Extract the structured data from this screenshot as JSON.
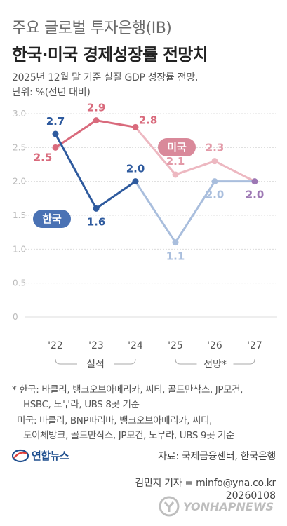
{
  "header": {
    "suptitle": "주요 글로벌 투자은행(IB)",
    "title": "한국·미국 경제성장률 전망치",
    "subtitle_line1": "2025년 12월 말 기준 실질 GDP 성장률 전망,",
    "subtitle_line2": "단위: %(전년 대비)"
  },
  "colors": {
    "korea_actual": "#2e5a9e",
    "korea_forecast": "#a9bedd",
    "us_actual": "#d96a7c",
    "us_forecast": "#edb8c1",
    "grid": "#dcdcdc",
    "axis_text": "#bbbbbb",
    "converge_marker": "#9d78b4"
  },
  "chart_data": {
    "type": "line",
    "x": [
      "'22",
      "'23",
      "'24",
      "'25",
      "'26",
      "'27"
    ],
    "ylim": [
      0,
      3.0
    ],
    "yticks": [
      "0",
      "0.5",
      "1.0",
      "1.5",
      "2.0",
      "2.5",
      "3.0"
    ],
    "grid": true,
    "series": [
      {
        "name": "한국",
        "values": [
          2.7,
          1.6,
          2.0,
          1.1,
          2.0,
          2.0
        ],
        "labels": [
          "2.7",
          "1.6",
          "2.0",
          "1.1",
          "2.0",
          "2.0"
        ]
      },
      {
        "name": "미국",
        "values": [
          2.5,
          2.9,
          2.8,
          2.1,
          2.3,
          2.0
        ],
        "labels": [
          "2.5",
          "2.9",
          "2.8",
          "2.1",
          "2.3",
          ""
        ]
      }
    ],
    "period_labels": [
      "실적",
      "전망*"
    ]
  },
  "notes": {
    "korea_line1": "* 한국: 바클리, 뱅크오브아메리카, 씨티, 골드만삭스, JP모건,",
    "korea_line2": "HSBC, 노무라, UBS 8곳 기준",
    "us_line1": "미국: 바클리, BNP파리바, 뱅크오브아메리카, 씨티,",
    "us_line2": "도이체방크, 골드만삭스, JP모건, 노무라, UBS 9곳 기준"
  },
  "footer": {
    "logo_text": "연합뉴스",
    "source": "자료: 국제금융센터, 한국은행",
    "byline": "김민지 기자 = minfo@yna.co.kr",
    "date": "20260108",
    "watermark": "YONHAPNEWS"
  }
}
